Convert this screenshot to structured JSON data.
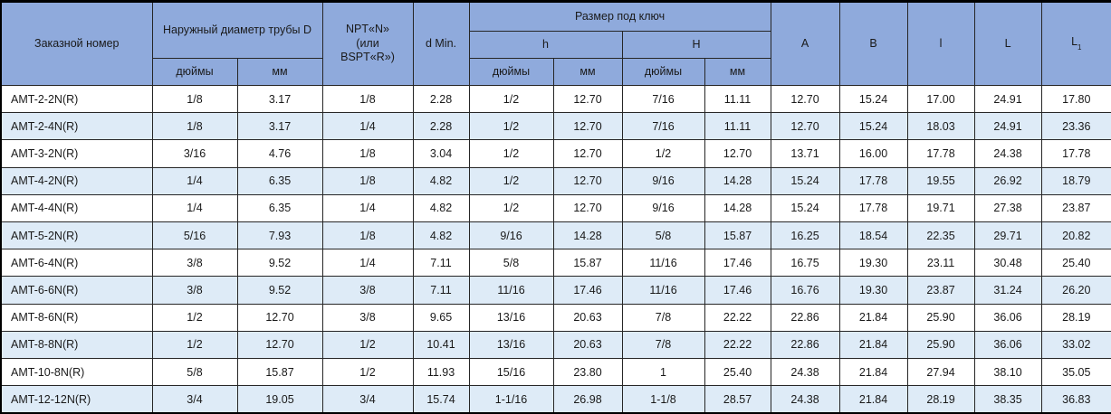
{
  "colors": {
    "header_bg": "#8FAADC",
    "alt_row_bg": "#DEEBF7",
    "border": "#262626",
    "text": "#1A1A1A"
  },
  "header": {
    "order_number": "Заказной номер",
    "outer_diameter": "Наружный диаметр трубы D",
    "npt": "NPT«N»\n(или\nBSPT«R»)",
    "d_min": "d Min.",
    "wrench_size": "Размер под ключ",
    "h_lower": "h",
    "h_upper": "H",
    "inches": "дюймы",
    "mm": "мм",
    "a": "A",
    "b": "B",
    "l_lower": "l",
    "l_upper": "L",
    "l1_base": "L",
    "l1_sub": "1"
  },
  "column_keys": [
    "order-number",
    "diameter-inches",
    "diameter-mm",
    "npt",
    "d-min",
    "h-inches",
    "h-mm",
    "h-cap-inches",
    "h-cap-mm",
    "a",
    "b",
    "l-lower",
    "l-upper",
    "l1"
  ],
  "rows": [
    [
      "AMT-2-2N(R)",
      "1/8",
      "3.17",
      "1/8",
      "2.28",
      "1/2",
      "12.70",
      "7/16",
      "11.11",
      "12.70",
      "15.24",
      "17.00",
      "24.91",
      "17.80"
    ],
    [
      "AMT-2-4N(R)",
      "1/8",
      "3.17",
      "1/4",
      "2.28",
      "1/2",
      "12.70",
      "7/16",
      "11.11",
      "12.70",
      "15.24",
      "18.03",
      "24.91",
      "23.36"
    ],
    [
      "AMT-3-2N(R)",
      "3/16",
      "4.76",
      "1/8",
      "3.04",
      "1/2",
      "12.70",
      "1/2",
      "12.70",
      "13.71",
      "16.00",
      "17.78",
      "24.38",
      "17.78"
    ],
    [
      "AMT-4-2N(R)",
      "1/4",
      "6.35",
      "1/8",
      "4.82",
      "1/2",
      "12.70",
      "9/16",
      "14.28",
      "15.24",
      "17.78",
      "19.55",
      "26.92",
      "18.79"
    ],
    [
      "AMT-4-4N(R)",
      "1/4",
      "6.35",
      "1/4",
      "4.82",
      "1/2",
      "12.70",
      "9/16",
      "14.28",
      "15.24",
      "17.78",
      "19.71",
      "27.38",
      "23.87"
    ],
    [
      "AMT-5-2N(R)",
      "5/16",
      "7.93",
      "1/8",
      "4.82",
      "9/16",
      "14.28",
      "5/8",
      "15.87",
      "16.25",
      "18.54",
      "22.35",
      "29.71",
      "20.82"
    ],
    [
      "AMT-6-4N(R)",
      "3/8",
      "9.52",
      "1/4",
      "7.11",
      "5/8",
      "15.87",
      "11/16",
      "17.46",
      "16.75",
      "19.30",
      "23.11",
      "30.48",
      "25.40"
    ],
    [
      "AMT-6-6N(R)",
      "3/8",
      "9.52",
      "3/8",
      "7.11",
      "11/16",
      "17.46",
      "11/16",
      "17.46",
      "16.76",
      "19.30",
      "23.87",
      "31.24",
      "26.20"
    ],
    [
      "AMT-8-6N(R)",
      "1/2",
      "12.70",
      "3/8",
      "9.65",
      "13/16",
      "20.63",
      "7/8",
      "22.22",
      "22.86",
      "21.84",
      "25.90",
      "36.06",
      "28.19"
    ],
    [
      "AMT-8-8N(R)",
      "1/2",
      "12.70",
      "1/2",
      "10.41",
      "13/16",
      "20.63",
      "7/8",
      "22.22",
      "22.86",
      "21.84",
      "25.90",
      "36.06",
      "33.02"
    ],
    [
      "AMT-10-8N(R)",
      "5/8",
      "15.87",
      "1/2",
      "11.93",
      "15/16",
      "23.80",
      "1",
      "25.40",
      "24.38",
      "21.84",
      "27.94",
      "38.10",
      "35.05"
    ],
    [
      "AMT-12-12N(R)",
      "3/4",
      "19.05",
      "3/4",
      "15.74",
      "1-1/16",
      "26.98",
      "1-1/8",
      "28.57",
      "24.38",
      "21.84",
      "28.19",
      "38.35",
      "36.83"
    ]
  ]
}
